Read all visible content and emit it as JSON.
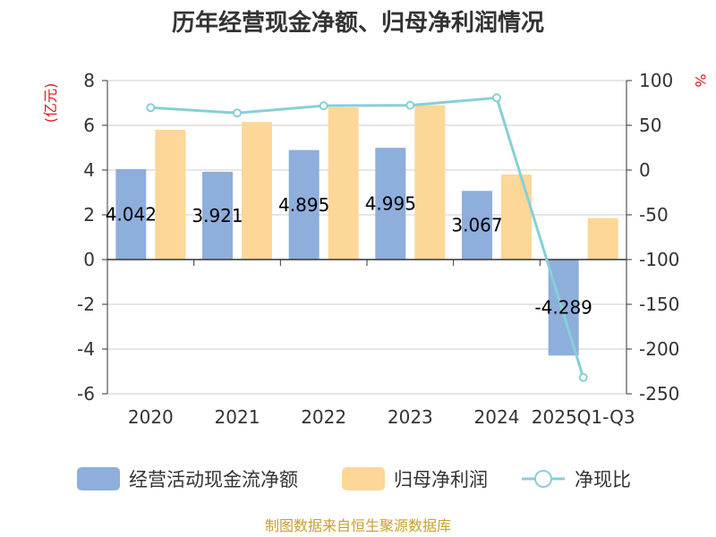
{
  "chart_data": {
    "type": "bar",
    "title": "历年经营现金净额、归母净利润情况",
    "categories": [
      "2020",
      "2021",
      "2022",
      "2023",
      "2024",
      "2025Q1-Q3"
    ],
    "series": [
      {
        "name": "经营活动现金流净额",
        "type": "bar",
        "axis": "left",
        "color": "#8eaedc",
        "values": [
          4.042,
          3.921,
          4.895,
          4.995,
          3.067,
          -4.289
        ],
        "labels": [
          "4.042",
          "3.921",
          "4.895",
          "4.995",
          "3.067",
          "-4.289"
        ]
      },
      {
        "name": "归母净利润",
        "type": "bar",
        "axis": "left",
        "color": "#fdd797",
        "values": [
          5.8,
          6.15,
          6.8,
          6.9,
          3.8,
          1.85
        ]
      },
      {
        "name": "净现比",
        "type": "line",
        "axis": "right",
        "color": "#86d0d6",
        "values": [
          69.7,
          63.8,
          71.9,
          72.4,
          80.7,
          -231.8
        ]
      }
    ],
    "y_left": {
      "label": "(亿元)",
      "min": -6,
      "max": 8,
      "ticks": [
        -6,
        -4,
        -2,
        0,
        2,
        4,
        6,
        8
      ]
    },
    "y_right": {
      "label": "%",
      "min": -250,
      "max": 100,
      "ticks": [
        -250,
        -200,
        -150,
        -100,
        -50,
        0,
        50,
        100
      ]
    },
    "grid": true,
    "legend_position": "bottom"
  },
  "source": "制图数据来自恒生聚源数据库"
}
